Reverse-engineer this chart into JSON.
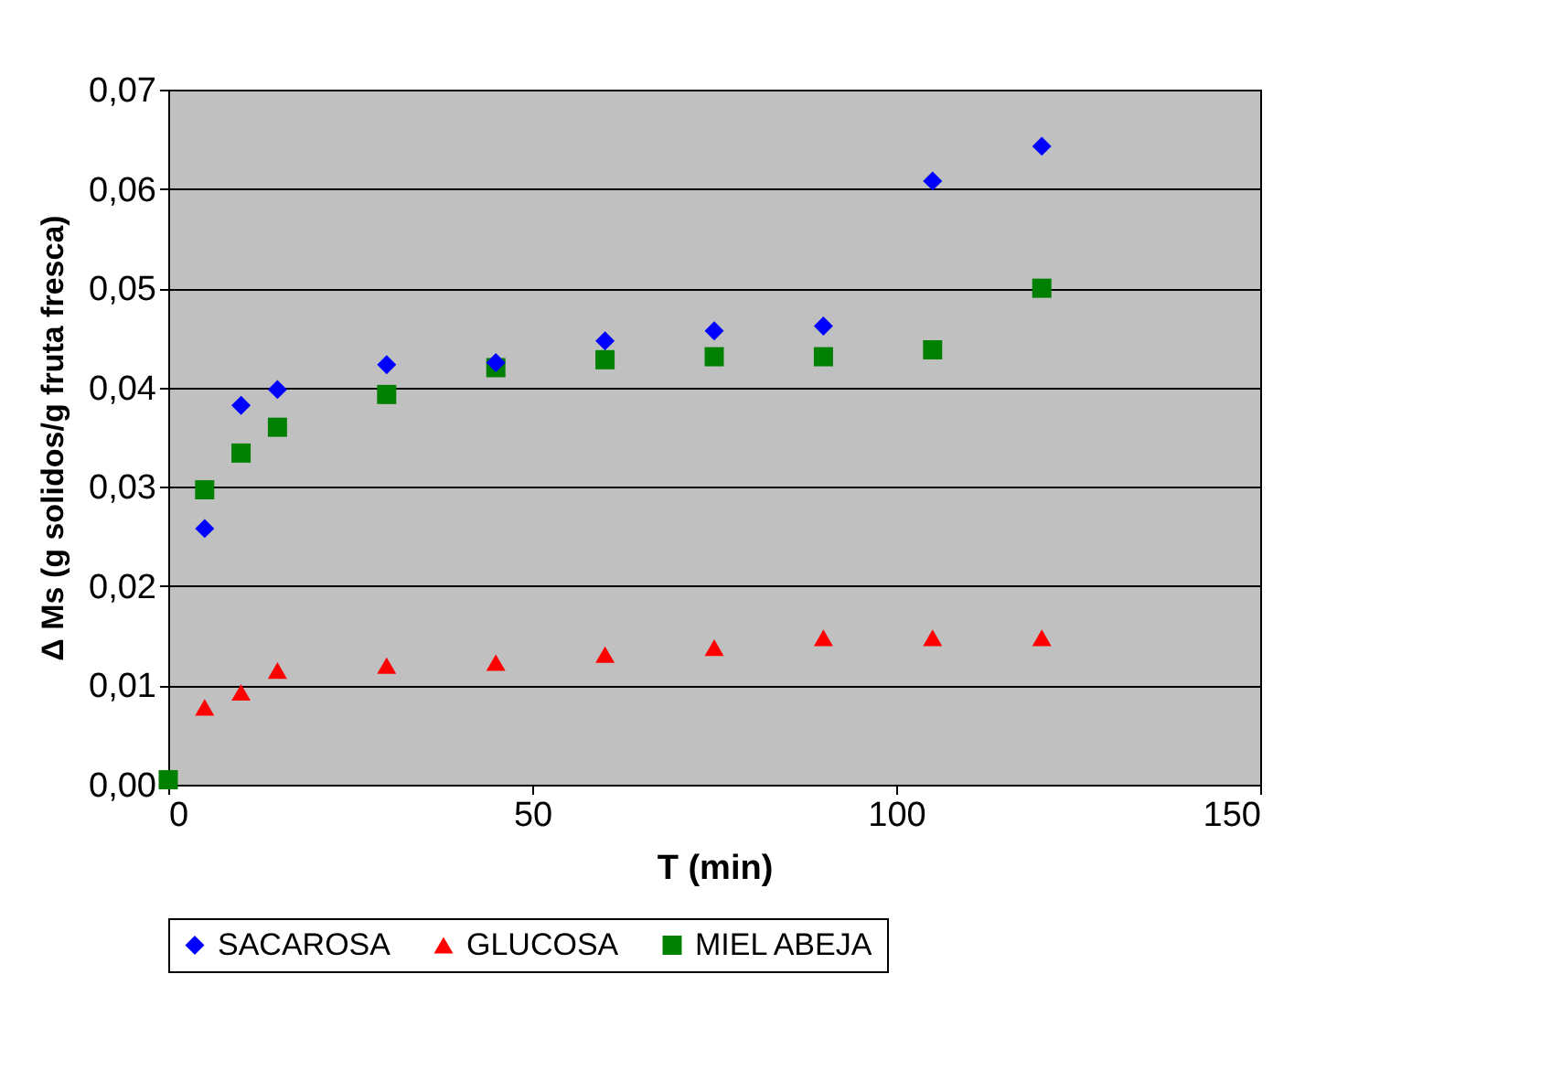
{
  "chart_data": {
    "type": "scatter",
    "xlabel": "T (min)",
    "ylabel": "Δ Ms (g solidos/g fruta fresca)",
    "xlim": [
      0,
      150
    ],
    "xticks": [
      0,
      50,
      100,
      150
    ],
    "ylim": [
      0,
      0.07
    ],
    "yticks": [
      {
        "value": 0,
        "label": "0,00"
      },
      {
        "value": 0.01,
        "label": "0,01"
      },
      {
        "value": 0.02,
        "label": "0,02"
      },
      {
        "value": 0.03,
        "label": "0,03"
      },
      {
        "value": 0.04,
        "label": "0,04"
      },
      {
        "value": 0.05,
        "label": "0,05"
      },
      {
        "value": 0.06,
        "label": "0,06"
      },
      {
        "value": 0.07,
        "label": "0,07"
      }
    ],
    "grid": "y",
    "legend": "bottom",
    "series": [
      {
        "name": "SACAROSA",
        "color": "#0000ff",
        "marker": "diamond",
        "x": [
          5,
          10,
          15,
          30,
          45,
          60,
          75,
          90,
          105,
          120
        ],
        "values": [
          0.0258,
          0.0382,
          0.0398,
          0.0423,
          0.0425,
          0.0447,
          0.0457,
          0.0462,
          0.0608,
          0.0643
        ]
      },
      {
        "name": "GLUCOSA",
        "color": "#ff0000",
        "marker": "triangle",
        "x": [
          5,
          10,
          15,
          30,
          45,
          60,
          75,
          90,
          105,
          120
        ],
        "values": [
          0.0078,
          0.0093,
          0.0115,
          0.012,
          0.0123,
          0.0131,
          0.0138,
          0.0148,
          0.0148,
          0.0148
        ]
      },
      {
        "name": "MIEL ABEJA",
        "color": "#008000",
        "marker": "square",
        "x": [
          0,
          5,
          10,
          15,
          30,
          45,
          60,
          75,
          90,
          105,
          120
        ],
        "values": [
          0.0005,
          0.0297,
          0.0334,
          0.036,
          0.0393,
          0.042,
          0.0428,
          0.0431,
          0.0431,
          0.0438,
          0.05
        ]
      }
    ]
  }
}
